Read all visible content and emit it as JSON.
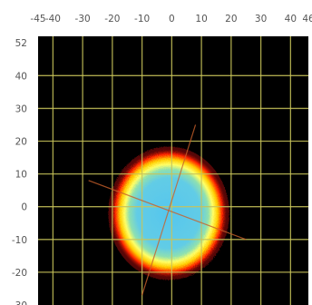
{
  "chart_data": {
    "type": "heatmap",
    "title": "",
    "xlabel": "",
    "ylabel": "",
    "xlim": [
      -45,
      46
    ],
    "ylim": [
      -30,
      52
    ],
    "x_ticks": [
      -45,
      -40,
      -30,
      -20,
      -10,
      0,
      10,
      20,
      30,
      40,
      46
    ],
    "x_tick_labels": [
      "-45",
      "-40",
      "-30",
      "-20",
      "-10",
      "0",
      "10",
      "20",
      "30",
      "40",
      "46"
    ],
    "y_ticks": [
      52,
      40,
      30,
      20,
      10,
      0,
      -10,
      -20,
      -30
    ],
    "y_tick_labels": [
      "52",
      "40",
      "30",
      "20",
      "10",
      "0",
      "-10",
      "-20",
      "-30"
    ],
    "grid": true,
    "grid_color": "#c8c45a",
    "background_color": "#000000",
    "colormap": [
      "#000000",
      "#9c0a0a",
      "#ff2200",
      "#ffcc00",
      "#ffff66",
      "#8fe0b0",
      "#55c6ee"
    ],
    "spot": {
      "center": [
        -1,
        -2
      ],
      "radius": 17.5,
      "peak_level": 1.0
    },
    "streaks": [
      {
        "from": [
          -28,
          8
        ],
        "to": [
          25,
          -10
        ]
      },
      {
        "from": [
          -10,
          -27
        ],
        "to": [
          8,
          25
        ]
      }
    ]
  }
}
